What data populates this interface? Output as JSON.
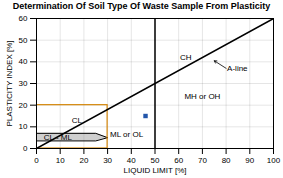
{
  "chart_data": {
    "type": "line",
    "title": "Determination Of Soil Type Of Waste Sample From Plasticity",
    "xlabel": "LIQUID LIMIT [%]",
    "ylabel": "PLASTICITY INDEX [%]",
    "xlim": [
      0,
      100
    ],
    "ylim": [
      0,
      60
    ],
    "xticks": [
      0,
      10,
      20,
      30,
      40,
      50,
      60,
      70,
      80,
      90,
      100
    ],
    "yticks": [
      0,
      10,
      20,
      30,
      40,
      50,
      60
    ],
    "grid": true,
    "a_line": {
      "x": [
        0,
        100
      ],
      "values": [
        0,
        60
      ],
      "color": "#000000"
    },
    "vertical_line": {
      "x": 50,
      "color": "#000000"
    },
    "zone": {
      "x": 0,
      "y": 0,
      "width": 30,
      "height": 20,
      "color": "#d4870a"
    },
    "band": {
      "top": {
        "x": [
          0,
          25,
          30
        ],
        "values": [
          7,
          7,
          5
        ]
      },
      "bottom": {
        "x": [
          0,
          25,
          30
        ],
        "values": [
          3.5,
          3.5,
          5
        ]
      },
      "color": "#888888",
      "line_color": "#000000"
    },
    "point": {
      "x": 46,
      "y": 15,
      "color": "#2255aa",
      "marker": "square"
    },
    "annotations": [
      {
        "text": "CH",
        "x": 63,
        "y": 42
      },
      {
        "text": "MH or OH",
        "x": 70,
        "y": 24
      },
      {
        "text": "CL",
        "x": 17,
        "y": 13
      },
      {
        "text": "ML or OL",
        "x": 38,
        "y": 6.5
      },
      {
        "text": "CL - ML",
        "x": 9,
        "y": 5.3
      },
      {
        "text": "A-line",
        "x": 80,
        "y": 37,
        "arrow_x": 75,
        "arrow_y": 40.5
      }
    ]
  }
}
